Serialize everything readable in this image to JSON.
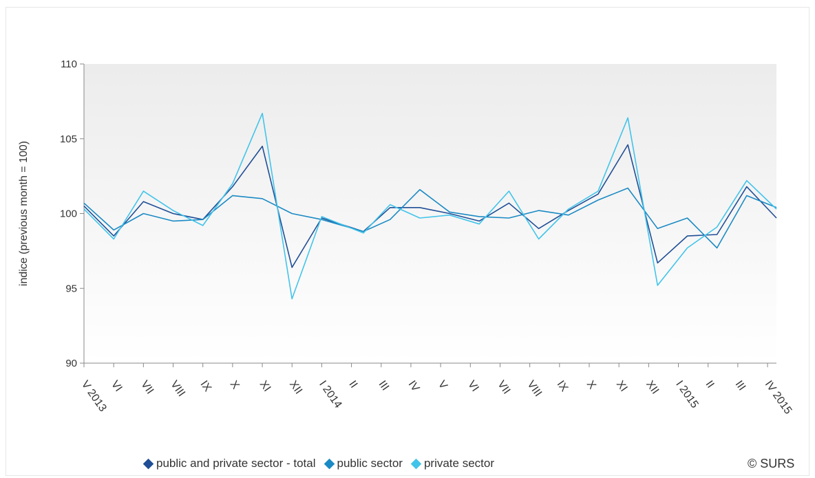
{
  "chart_data": {
    "type": "line",
    "ylabel": "indice (previous month = 100)",
    "ylim": [
      90,
      110
    ],
    "yticks": [
      90,
      95,
      100,
      105,
      110
    ],
    "grid": false,
    "legend_placement": "bottom",
    "categories": [
      "V 2013",
      "VI",
      "VII",
      "VIII",
      "IX",
      "X",
      "XI",
      "XII",
      "I 2014",
      "II",
      "III",
      "IV",
      "V",
      "VI",
      "VII",
      "VIII",
      "IX",
      "X",
      "XI",
      "XII",
      "I 2015",
      "II",
      "III",
      "IV 2015"
    ],
    "x_label_positions": [
      0,
      1,
      2,
      3,
      4,
      5,
      6,
      7,
      8,
      9,
      10,
      11,
      12,
      13,
      14,
      15,
      16,
      17,
      18,
      19,
      20,
      21,
      22,
      23
    ],
    "x_positions": [
      0,
      1,
      2,
      3,
      4,
      5,
      6,
      7,
      8,
      9.4,
      10.3,
      11.3,
      12.3,
      13.3,
      14.3,
      15.3,
      16.3,
      17.3,
      18.3,
      19.3,
      20.3,
      21.3,
      22.3,
      23.3
    ],
    "series": [
      {
        "name": "public and private sector - total",
        "color": "#1f4e96",
        "values": [
          100.5,
          98.5,
          100.8,
          100.0,
          99.6,
          101.8,
          104.5,
          96.4,
          99.7,
          98.8,
          100.4,
          100.4,
          100.0,
          99.5,
          100.7,
          99.0,
          100.2,
          101.3,
          104.6,
          96.7,
          98.5,
          98.6,
          101.8,
          99.7
        ]
      },
      {
        "name": "public sector",
        "color": "#1a8ac4",
        "values": [
          100.7,
          98.9,
          100.0,
          99.5,
          99.6,
          101.2,
          101.0,
          100.0,
          99.6,
          98.8,
          99.6,
          101.6,
          100.1,
          99.8,
          99.7,
          100.2,
          99.9,
          100.9,
          101.7,
          99.0,
          99.7,
          97.7,
          101.2,
          100.4
        ]
      },
      {
        "name": "private sector",
        "color": "#41c4ea",
        "values": [
          100.3,
          98.3,
          101.5,
          100.2,
          99.2,
          102.0,
          106.7,
          94.3,
          99.8,
          98.7,
          100.6,
          99.7,
          99.9,
          99.3,
          101.5,
          98.3,
          100.3,
          101.5,
          106.4,
          95.2,
          97.7,
          99.1,
          102.2,
          100.3
        ]
      }
    ]
  },
  "legend": {
    "items": [
      {
        "label": "public and private sector - total",
        "color": "#1f4e96"
      },
      {
        "label": "public sector",
        "color": "#1a8ac4"
      },
      {
        "label": "private sector",
        "color": "#41c4ea"
      }
    ]
  },
  "credit": "© SURS"
}
